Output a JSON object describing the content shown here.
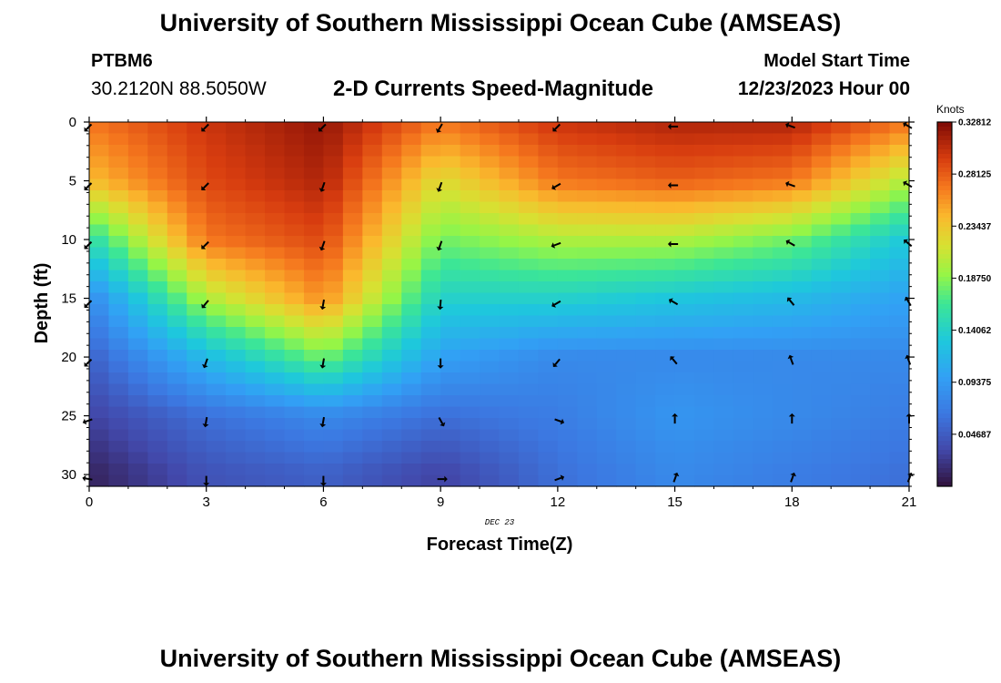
{
  "header": {
    "title": "University of Southern Mississippi Ocean Cube (AMSEAS)",
    "station_id": "PTBM6",
    "station_coords": "30.2120N  88.5050W",
    "product": "2-D Currents Speed-Magnitude",
    "model_start_label": "Model Start Time",
    "model_start_value": "12/23/2023 Hour 00"
  },
  "footer": {
    "title": "University of Southern Mississippi Ocean Cube (AMSEAS)"
  },
  "chart_data": {
    "type": "heatmap",
    "title": "2-D Currents Speed-Magnitude",
    "xlabel": "Forecast Time(Z)",
    "ylabel": "Depth (ft)",
    "date_label": "DEC 23",
    "x_range": [
      0,
      21
    ],
    "y_range": [
      0,
      31
    ],
    "x_ticks": [
      0,
      3,
      6,
      9,
      12,
      15,
      18,
      21
    ],
    "y_ticks": [
      0,
      5,
      10,
      15,
      20,
      25,
      30
    ],
    "colorbar": {
      "unit_label": "Knots",
      "range": [
        0.0,
        0.32812
      ],
      "tick_labels": [
        "0.32812",
        "0.28125",
        "0.23437",
        "0.18750",
        "0.14062",
        "0.09375",
        "0.04687"
      ],
      "tick_values": [
        0.32812,
        0.28125,
        0.23437,
        0.1875,
        0.14062,
        0.09375,
        0.04687
      ]
    },
    "approx_speed_profile": {
      "times": [
        0,
        3,
        6,
        9,
        12,
        15,
        18,
        21
      ],
      "depths": [
        0,
        5,
        10,
        15,
        20,
        25,
        30
      ],
      "speed_knots": [
        [
          0.27,
          0.3,
          0.32,
          0.27,
          0.3,
          0.31,
          0.31,
          0.27
        ],
        [
          0.24,
          0.29,
          0.31,
          0.22,
          0.27,
          0.28,
          0.27,
          0.2
        ],
        [
          0.15,
          0.27,
          0.29,
          0.18,
          0.2,
          0.2,
          0.18,
          0.13
        ],
        [
          0.08,
          0.2,
          0.26,
          0.14,
          0.14,
          0.13,
          0.12,
          0.1
        ],
        [
          0.05,
          0.12,
          0.18,
          0.1,
          0.08,
          0.08,
          0.08,
          0.08
        ],
        [
          0.03,
          0.06,
          0.08,
          0.06,
          0.07,
          0.09,
          0.08,
          0.07
        ],
        [
          0.01,
          0.04,
          0.05,
          0.03,
          0.06,
          0.08,
          0.07,
          0.06
        ]
      ]
    },
    "approx_direction_profile": {
      "description": "current direction in degrees (direction toward, 0 = up/north on plot), approximate",
      "times": [
        0,
        3,
        6,
        9,
        12,
        15,
        18,
        21
      ],
      "depths": [
        0,
        5,
        10,
        15,
        20,
        25,
        30
      ],
      "direction_deg": [
        [
          225,
          225,
          225,
          210,
          225,
          270,
          290,
          300
        ],
        [
          225,
          225,
          200,
          200,
          240,
          270,
          290,
          300
        ],
        [
          225,
          225,
          200,
          200,
          250,
          270,
          300,
          310
        ],
        [
          225,
          220,
          190,
          185,
          240,
          300,
          320,
          330
        ],
        [
          225,
          200,
          190,
          180,
          220,
          320,
          340,
          340
        ],
        [
          250,
          190,
          190,
          150,
          110,
          0,
          0,
          0
        ],
        [
          280,
          180,
          180,
          90,
          70,
          20,
          20,
          20
        ]
      ]
    }
  }
}
